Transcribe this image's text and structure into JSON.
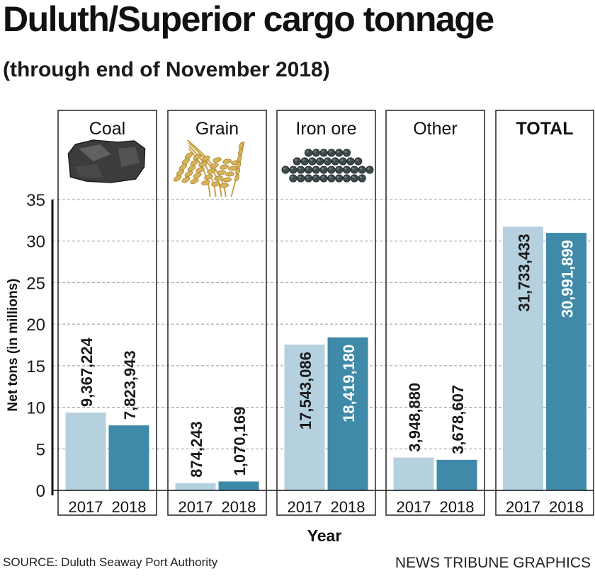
{
  "title": "Duluth/Superior cargo tonnage",
  "subtitle": "(through end of November 2018)",
  "source": "SOURCE: Duluth Seaway Port Authority",
  "credit": "NEWS TRIBUNE GRAPHICS",
  "colors": {
    "bar_2017": "#b5d0de",
    "bar_2018": "#3f8aa8",
    "label_dark": "#1a1a1a",
    "label_light": "#ffffff",
    "grid": "#9a9a9a",
    "panel_border": "#222222"
  },
  "chart_data": {
    "type": "bar",
    "title": "Duluth/Superior cargo tonnage",
    "subtitle": "(through end of November 2018)",
    "xlabel": "Year",
    "ylabel": "Net tons (in millions)",
    "ylim": [
      0,
      35
    ],
    "yticks": [
      0,
      5,
      10,
      15,
      20,
      25,
      30,
      35
    ],
    "grid": true,
    "series_years": [
      "2017",
      "2018"
    ],
    "groups": [
      {
        "name": "Coal",
        "icon": "coal-icon",
        "bold": false,
        "bars": [
          {
            "year": "2017",
            "value": 9.367224,
            "label": "9,367,224"
          },
          {
            "year": "2018",
            "value": 7.823943,
            "label": "7,823,943"
          }
        ]
      },
      {
        "name": "Grain",
        "icon": "grain-icon",
        "bold": false,
        "bars": [
          {
            "year": "2017",
            "value": 0.874243,
            "label": "874,243"
          },
          {
            "year": "2018",
            "value": 1.070169,
            "label": "1,070,169"
          }
        ]
      },
      {
        "name": "Iron ore",
        "icon": "iron-ore-icon",
        "bold": false,
        "bars": [
          {
            "year": "2017",
            "value": 17.543086,
            "label": "17,543,086"
          },
          {
            "year": "2018",
            "value": 18.41918,
            "label": "18,419,180"
          }
        ]
      },
      {
        "name": "Other",
        "icon": "",
        "bold": false,
        "bars": [
          {
            "year": "2017",
            "value": 3.94888,
            "label": "3,948,880"
          },
          {
            "year": "2018",
            "value": 3.678607,
            "label": "3,678,607"
          }
        ]
      },
      {
        "name": "TOTAL",
        "icon": "",
        "bold": true,
        "bars": [
          {
            "year": "2017",
            "value": 31.733433,
            "label": "31,733,433"
          },
          {
            "year": "2018",
            "value": 30.991899,
            "label": "30,991,899"
          }
        ]
      }
    ]
  }
}
